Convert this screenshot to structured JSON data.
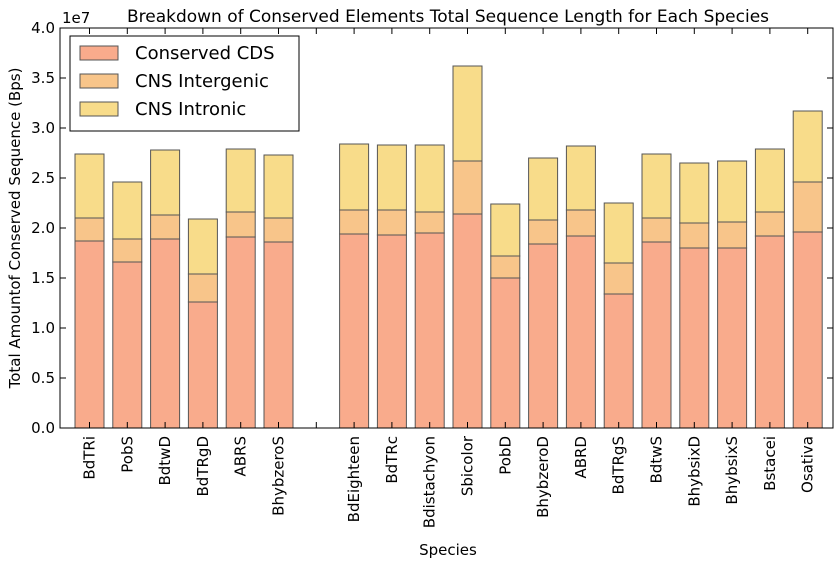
{
  "chart_data": {
    "type": "bar",
    "stacked": true,
    "title": "Breakdown of Conserved Elements Total Sequence Length for Each Species",
    "xlabel": "Species",
    "ylabel": "Total Amountof Conserved Sequence (Bps)",
    "y_scale_label": "1e7",
    "ylim": [
      0,
      4.0
    ],
    "yticks": [
      "0.0",
      "0.5",
      "1.0",
      "1.5",
      "2.0",
      "2.5",
      "3.0",
      "3.5",
      "4.0"
    ],
    "legend_position": "top-left",
    "categories": [
      "BdTRi",
      "PobS",
      "BdtwD",
      "BdTRgD",
      "ABRS",
      "BhybzeroS",
      "",
      "BdEighteen",
      "BdTRc",
      "Bdistachyon",
      "Sbicolor",
      "PobD",
      "BhybzeroD",
      "ABRD",
      "BdTRgS",
      "BdtwS",
      "BhybsixD",
      "BhybsixS",
      "Bstacei",
      "Osativa"
    ],
    "series": [
      {
        "name": "Conserved CDS",
        "color": "#f9ab8c",
        "values": [
          1.87,
          1.66,
          1.89,
          1.26,
          1.91,
          1.86,
          0,
          1.94,
          1.93,
          1.95,
          2.14,
          1.5,
          1.84,
          1.92,
          1.34,
          1.86,
          1.8,
          1.8,
          1.92,
          1.96
        ]
      },
      {
        "name": "CNS Intergenic",
        "color": "#f8c58a",
        "values": [
          0.23,
          0.23,
          0.24,
          0.28,
          0.25,
          0.24,
          0,
          0.24,
          0.25,
          0.21,
          0.53,
          0.22,
          0.24,
          0.26,
          0.31,
          0.24,
          0.25,
          0.26,
          0.24,
          0.5
        ]
      },
      {
        "name": "CNS Intronic",
        "color": "#f8dc8a",
        "values": [
          0.64,
          0.57,
          0.65,
          0.55,
          0.63,
          0.63,
          0,
          0.66,
          0.65,
          0.67,
          0.95,
          0.52,
          0.62,
          0.64,
          0.6,
          0.64,
          0.6,
          0.61,
          0.63,
          0.71
        ]
      }
    ]
  }
}
